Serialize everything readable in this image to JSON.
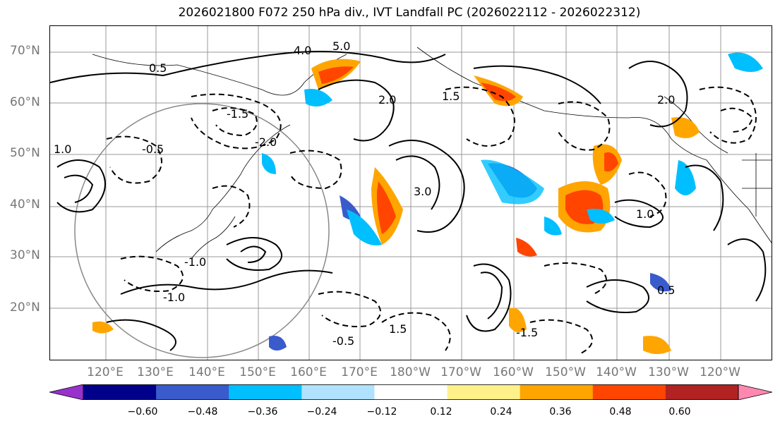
{
  "title": "2026021800 F072 250 hPa div., IVT Landfall PC (2026022112 - 2026022312)",
  "lat_labels": [
    "70°N",
    "60°N",
    "50°N",
    "40°N",
    "30°N",
    "20°N"
  ],
  "lon_labels": [
    "120°E",
    "130°E",
    "140°E",
    "150°E",
    "160°E",
    "170°E",
    "180°W",
    "170°W",
    "160°W",
    "150°W",
    "140°W",
    "130°W",
    "120°W"
  ],
  "colorbar": {
    "ticks": [
      "−0.60",
      "−0.48",
      "−0.36",
      "−0.24",
      "−0.12",
      "0.12",
      "0.24",
      "0.36",
      "0.48",
      "0.60"
    ],
    "colors": [
      "#9932cc",
      "#00008b",
      "#3a5bcc",
      "#00bfff",
      "#b0e2ff",
      "#ffffff",
      "#fff08a",
      "#ffa500",
      "#ff4500",
      "#b22222",
      "#ff88b0"
    ]
  },
  "contour_labels": [
    "1.0",
    "0.5",
    "-0.5",
    "5.0",
    "4.0",
    "2.0",
    "-2.0",
    "-1.5",
    "1.5",
    "-1.0",
    "3.0",
    "0.5",
    "1.0",
    "-0.5",
    "-1.0",
    "1.5",
    "2.0",
    "-1.5"
  ]
}
